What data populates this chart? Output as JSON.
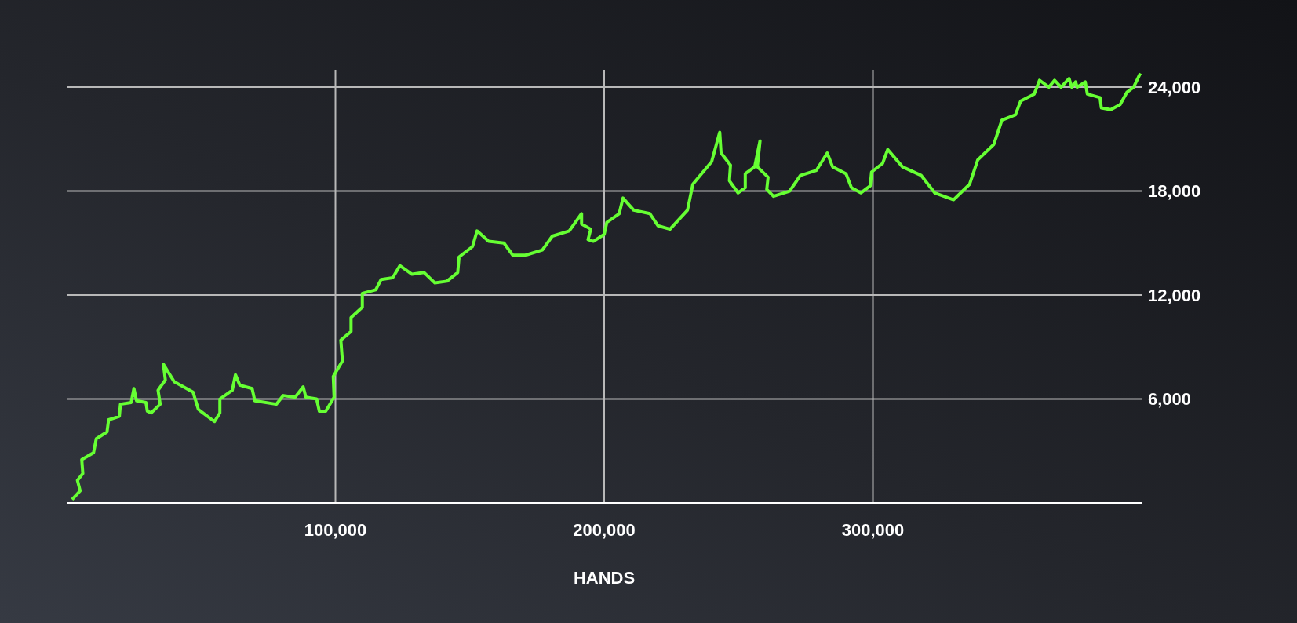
{
  "chart_data": {
    "type": "line",
    "xlabel": "HANDS",
    "x": [
      2000,
      5000,
      4000,
      6000,
      5600,
      10000,
      11000,
      15000,
      15600,
      19600,
      20000,
      24000,
      25000,
      26000,
      29500,
      30000,
      31400,
      34800,
      34000,
      36700,
      36000,
      40000,
      47000,
      49000,
      55000,
      57000,
      57000,
      61600,
      62800,
      64400,
      69000,
      70000,
      78000,
      80600,
      85000,
      88000,
      89000,
      93000,
      94000,
      96400,
      99500,
      99200,
      102600,
      102000,
      105800,
      105800,
      110000,
      110000,
      115000,
      117000,
      121300,
      124000,
      128500,
      133000,
      137000,
      141500,
      145500,
      146000,
      151000,
      152700,
      157000,
      162700,
      166000,
      170700,
      177000,
      180700,
      187000,
      191600,
      191600,
      195000,
      194000,
      196000,
      200000,
      201000,
      205600,
      207000,
      211000,
      217000,
      220000,
      224500,
      231000,
      233000,
      240000,
      243000,
      243500,
      247000,
      246600,
      249800,
      252500,
      252500,
      256000,
      258000,
      257000,
      261000,
      260500,
      263000,
      269000,
      273000,
      279000,
      283000,
      285000,
      290000,
      292000,
      295500,
      299000,
      299500,
      303600,
      305500,
      311000,
      318000,
      323000,
      330000,
      336000,
      339000,
      345000,
      348000,
      353000,
      355000,
      360000,
      362000,
      365500,
      367600,
      370000,
      373000,
      374000,
      375400,
      376000,
      379000,
      379800,
      384500,
      385000,
      388500,
      392000,
      394500,
      397000,
      399500
    ],
    "series": [
      {
        "color": "#66ff33",
        "values": [
          200,
          700,
          1300,
          1700,
          2500,
          2900,
          3700,
          4100,
          4800,
          5000,
          5700,
          5800,
          6600,
          5900,
          5800,
          5300,
          5200,
          5700,
          6500,
          7100,
          8000,
          7000,
          6400,
          5400,
          4700,
          5200,
          6000,
          6500,
          7400,
          6800,
          6600,
          5900,
          5700,
          6200,
          6100,
          6700,
          6100,
          6000,
          5300,
          5300,
          6100,
          7300,
          8200,
          9400,
          9900,
          10700,
          11300,
          12100,
          12300,
          12900,
          13000,
          13700,
          13200,
          13300,
          12700,
          12800,
          13300,
          14200,
          14800,
          15700,
          15100,
          15000,
          14300,
          14300,
          14600,
          15400,
          15700,
          16700,
          16100,
          15800,
          15200,
          15100,
          15500,
          16200,
          16700,
          17600,
          16900,
          16700,
          16000,
          15800,
          16900,
          18400,
          19700,
          21400,
          20200,
          19500,
          18600,
          17900,
          18200,
          19000,
          19400,
          20900,
          19400,
          18800,
          18100,
          17700,
          18000,
          18900,
          19200,
          20200,
          19400,
          19000,
          18200,
          17900,
          18300,
          19100,
          19600,
          20400,
          19400,
          18900,
          17900,
          17500,
          18400,
          19800,
          20700,
          22100,
          22400,
          23200,
          23600,
          24400,
          24000,
          24400,
          24000,
          24500,
          24000,
          24300,
          24000,
          24300,
          23600,
          23400,
          22800,
          22700,
          23000,
          23700,
          24000,
          24800
        ]
      }
    ],
    "xlim": [
      0,
      400000
    ],
    "xticks": [
      {
        "value": 100000,
        "label": "100,000"
      },
      {
        "value": 200000,
        "label": "200,000"
      },
      {
        "value": 300000,
        "label": "300,000"
      }
    ],
    "ylim": [
      0,
      25000
    ],
    "yticks": [
      {
        "value": 6000,
        "label": "6,000"
      },
      {
        "value": 12000,
        "label": "12,000"
      },
      {
        "value": 18000,
        "label": "18,000"
      },
      {
        "value": 24000,
        "label": "24,000"
      }
    ],
    "grid": true,
    "marker": "none",
    "line_style": "solid"
  }
}
